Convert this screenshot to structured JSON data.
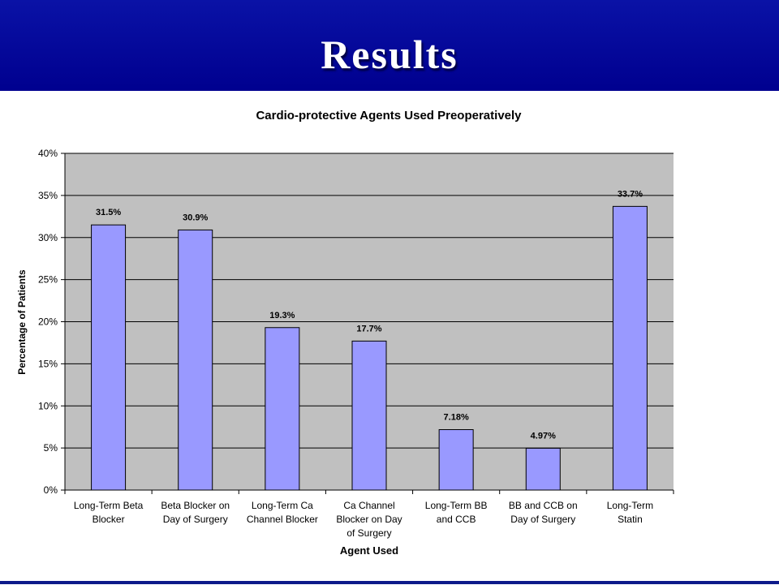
{
  "slide": {
    "title": "Results"
  },
  "colors": {
    "header_bg": "#00008f",
    "plot_bg": "#c0c0c0",
    "bar_fill": "#9999ff",
    "bar_stroke": "#000000"
  },
  "chart_data": {
    "type": "bar",
    "title": "Cardio-protective Agents Used Preoperatively",
    "xlabel": "Agent Used",
    "ylabel": "Percentage of Patients",
    "ylim": [
      0,
      40
    ],
    "y_ticks": [
      0,
      5,
      10,
      15,
      20,
      25,
      30,
      35,
      40
    ],
    "y_tick_labels": [
      "0%",
      "5%",
      "10%",
      "15%",
      "20%",
      "25%",
      "30%",
      "35%",
      "40%"
    ],
    "grid": true,
    "legend": "none",
    "categories": [
      [
        "Long-Term Beta",
        "Blocker"
      ],
      [
        "Beta Blocker on",
        "Day of Surgery"
      ],
      [
        "Long-Term Ca",
        "Channel Blocker"
      ],
      [
        "Ca Channel",
        "Blocker on Day",
        "of Surgery"
      ],
      [
        "Long-Term BB",
        "and CCB"
      ],
      [
        "BB and CCB on",
        "Day of Surgery"
      ],
      [
        "Long-Term",
        "Statin"
      ]
    ],
    "values": [
      31.5,
      30.9,
      19.3,
      17.7,
      7.18,
      4.97,
      33.7
    ],
    "data_labels": [
      "31.5%",
      "30.9%",
      "19.3%",
      "17.7%",
      "7.18%",
      "4.97%",
      "33.7%"
    ]
  }
}
